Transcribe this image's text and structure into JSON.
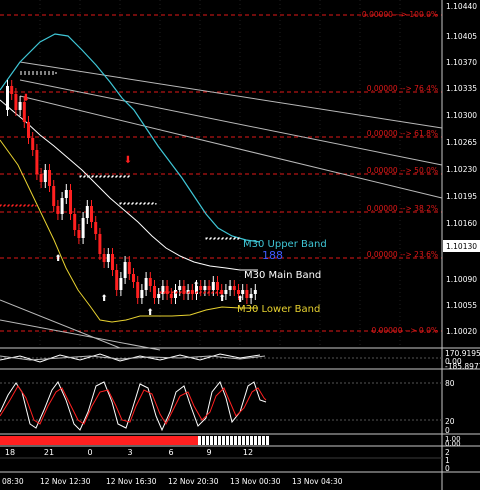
{
  "colors": {
    "background": "#000000",
    "grid": "#2f2f2f",
    "fib": "#e01818",
    "upper_band": "#3fc6d6",
    "main_band": "#ffffff",
    "lower_band": "#e8d230",
    "trendline": "#b9b9b9",
    "bull_candle": "#ffffff",
    "bear_candle": "#ff2020",
    "stoch_main": "#ffffff",
    "stoch_signal": "#ff2020",
    "marker": "#ffffff"
  },
  "price_axis": {
    "labels": [
      "1.10440",
      "1.10405",
      "1.10370",
      "1.10335",
      "1.10300",
      "1.10265",
      "1.10230",
      "1.10195",
      "1.10160",
      "1.10090",
      "1.10055",
      "1.10020"
    ],
    "current_price": "1.10130"
  },
  "fib_levels": [
    {
      "label": "0.00000 --> 100.0%"
    },
    {
      "label": "0.00000 --> 76.4%"
    },
    {
      "label": "0.00000 --> 61.8%"
    },
    {
      "label": "0.00000 --> 50.0%"
    },
    {
      "label": "0.00000 --> 38.2%"
    },
    {
      "label": "0.00000 --> 23.6%"
    },
    {
      "label": "0.00000 --> 0.0%"
    }
  ],
  "band_labels": {
    "upper": "M30 Upper Band",
    "main": "M30 Main Band",
    "lower": "M30 Lower Band",
    "count": "188"
  },
  "indicator1": {
    "labels": [
      "170.9195",
      "0.00",
      "-185.8977"
    ]
  },
  "indicator2": {
    "labels": [
      "80",
      "20",
      "0"
    ]
  },
  "indicator3": {
    "labels": [
      "1.00",
      "0.00"
    ]
  },
  "indicator4": {
    "labels": [
      "2",
      "1",
      "0"
    ]
  },
  "hour_labels": [
    "18",
    "21",
    "0",
    "3",
    "6",
    "9",
    "12"
  ],
  "time_labels": [
    "08:30",
    "12 Nov 12:30",
    "12 Nov 16:30",
    "12 Nov 20:30",
    "13 Nov 00:30",
    "13 Nov 04:30"
  ]
}
